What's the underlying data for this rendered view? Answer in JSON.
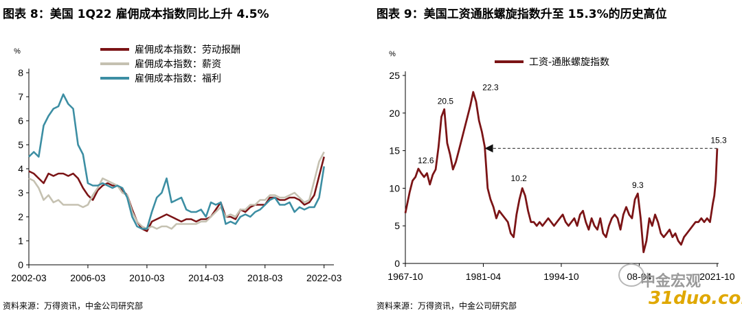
{
  "left": {
    "title": "图表 8：美国 1Q22 雇佣成本指数同比上升 4.5%",
    "source": "资料来源：万得资讯，中金公司研究部"
  },
  "right": {
    "title": "图表 9：美国工资通胀螺旋指数升至 15.3%的历史高位",
    "source": "资料来源：万得资讯，中金公司研究部"
  },
  "watermark": {
    "text1": "中金宏观",
    "text2": "31duo.com"
  },
  "chart_data": [
    {
      "type": "line",
      "unit_label": "%",
      "ylim": [
        0,
        8
      ],
      "yticks": [
        0,
        1,
        2,
        3,
        4,
        5,
        6,
        7,
        8
      ],
      "xlim": [
        2002.167,
        2022.833
      ],
      "xticks": [
        {
          "label": "2002-03",
          "value": 2002.167
        },
        {
          "label": "2006-03",
          "value": 2006.167
        },
        {
          "label": "2010-03",
          "value": 2010.167
        },
        {
          "label": "2014-03",
          "value": 2014.167
        },
        {
          "label": "2018-03",
          "value": 2018.167
        },
        {
          "label": "2022-03",
          "value": 2022.167
        }
      ],
      "legend_position": "top-center",
      "series": [
        {
          "name": "雇佣成本指数：劳动报酬",
          "color": "#7b1416",
          "x": [
            2002.167,
            2002.5,
            2002.833,
            2003.167,
            2003.5,
            2003.833,
            2004.167,
            2004.5,
            2004.833,
            2005.167,
            2005.5,
            2005.833,
            2006.167,
            2006.5,
            2006.833,
            2007.167,
            2007.5,
            2007.833,
            2008.167,
            2008.5,
            2008.833,
            2009.167,
            2009.5,
            2009.833,
            2010.167,
            2010.5,
            2010.833,
            2011.167,
            2011.5,
            2011.833,
            2012.167,
            2012.5,
            2012.833,
            2013.167,
            2013.5,
            2013.833,
            2014.167,
            2014.5,
            2014.833,
            2015.167,
            2015.5,
            2015.833,
            2016.167,
            2016.5,
            2016.833,
            2017.167,
            2017.5,
            2017.833,
            2018.167,
            2018.5,
            2018.833,
            2019.167,
            2019.5,
            2019.833,
            2020.167,
            2020.5,
            2020.833,
            2021.167,
            2021.5,
            2021.833,
            2022.167
          ],
          "values": [
            3.9,
            3.8,
            3.6,
            3.4,
            3.8,
            3.7,
            3.8,
            3.8,
            3.7,
            3.8,
            3.6,
            3.2,
            2.9,
            2.7,
            3.1,
            3.3,
            3.4,
            3.3,
            3.3,
            3.1,
            2.9,
            2.3,
            1.8,
            1.5,
            1.4,
            1.8,
            1.9,
            2.0,
            2.1,
            2.0,
            1.9,
            1.8,
            1.9,
            1.9,
            1.8,
            1.9,
            1.9,
            2.0,
            2.3,
            2.6,
            2.0,
            2.0,
            1.9,
            2.3,
            2.2,
            2.4,
            2.5,
            2.5,
            2.5,
            2.8,
            2.8,
            2.7,
            2.7,
            2.8,
            2.8,
            2.7,
            2.5,
            2.6,
            2.9,
            3.7,
            4.5
          ]
        },
        {
          "name": "雇佣成本指数：薪资",
          "color": "#c5c1b1",
          "x": [
            2002.167,
            2002.5,
            2002.833,
            2003.167,
            2003.5,
            2003.833,
            2004.167,
            2004.5,
            2004.833,
            2005.167,
            2005.5,
            2005.833,
            2006.167,
            2006.5,
            2006.833,
            2007.167,
            2007.5,
            2007.833,
            2008.167,
            2008.5,
            2008.833,
            2009.167,
            2009.5,
            2009.833,
            2010.167,
            2010.5,
            2010.833,
            2011.167,
            2011.5,
            2011.833,
            2012.167,
            2012.5,
            2012.833,
            2013.167,
            2013.5,
            2013.833,
            2014.167,
            2014.5,
            2014.833,
            2015.167,
            2015.5,
            2015.833,
            2016.167,
            2016.5,
            2016.833,
            2017.167,
            2017.5,
            2017.833,
            2018.167,
            2018.5,
            2018.833,
            2019.167,
            2019.5,
            2019.833,
            2020.167,
            2020.5,
            2020.833,
            2021.167,
            2021.5,
            2021.833,
            2022.167
          ],
          "values": [
            3.6,
            3.5,
            3.2,
            2.7,
            2.9,
            2.6,
            2.7,
            2.5,
            2.5,
            2.5,
            2.5,
            2.4,
            2.5,
            2.9,
            3.2,
            3.6,
            3.5,
            3.4,
            3.3,
            3.0,
            2.9,
            2.2,
            1.8,
            1.6,
            1.5,
            1.6,
            1.5,
            1.6,
            1.6,
            1.5,
            1.7,
            1.7,
            1.7,
            1.7,
            1.7,
            1.8,
            1.8,
            2.0,
            2.2,
            2.4,
            2.0,
            2.1,
            2.0,
            2.3,
            2.3,
            2.5,
            2.5,
            2.7,
            2.7,
            2.9,
            2.9,
            2.8,
            2.8,
            2.9,
            3.0,
            2.8,
            2.6,
            2.7,
            3.5,
            4.3,
            4.7
          ]
        },
        {
          "name": "雇佣成本指数：福利",
          "color": "#3c8ea3",
          "x": [
            2002.167,
            2002.5,
            2002.833,
            2003.167,
            2003.5,
            2003.833,
            2004.167,
            2004.5,
            2004.833,
            2005.167,
            2005.5,
            2005.833,
            2006.167,
            2006.5,
            2006.833,
            2007.167,
            2007.5,
            2007.833,
            2008.167,
            2008.5,
            2008.833,
            2009.167,
            2009.5,
            2009.833,
            2010.167,
            2010.5,
            2010.833,
            2011.167,
            2011.5,
            2011.833,
            2012.167,
            2012.5,
            2012.833,
            2013.167,
            2013.5,
            2013.833,
            2014.167,
            2014.5,
            2014.833,
            2015.167,
            2015.5,
            2015.833,
            2016.167,
            2016.5,
            2016.833,
            2017.167,
            2017.5,
            2017.833,
            2018.167,
            2018.5,
            2018.833,
            2019.167,
            2019.5,
            2019.833,
            2020.167,
            2020.5,
            2020.833,
            2021.167,
            2021.5,
            2021.833,
            2022.167
          ],
          "values": [
            4.5,
            4.7,
            4.5,
            5.8,
            6.2,
            6.5,
            6.6,
            7.1,
            6.7,
            6.5,
            5.0,
            4.6,
            3.4,
            3.3,
            3.3,
            3.4,
            3.3,
            3.2,
            3.3,
            3.2,
            2.8,
            2.0,
            1.6,
            1.5,
            1.5,
            2.2,
            2.8,
            3.0,
            3.6,
            2.6,
            2.7,
            2.8,
            2.3,
            2.2,
            2.2,
            2.3,
            2.0,
            2.6,
            2.5,
            2.6,
            1.7,
            1.8,
            1.7,
            2.0,
            2.1,
            2.0,
            2.2,
            2.3,
            2.5,
            2.7,
            2.8,
            2.5,
            2.5,
            2.6,
            2.2,
            2.4,
            2.3,
            2.4,
            2.4,
            2.8,
            4.1
          ]
        }
      ]
    },
    {
      "type": "line",
      "unit_label": "%",
      "ylim": [
        0,
        25
      ],
      "yticks": [
        0,
        5,
        10,
        15,
        20,
        25
      ],
      "xlim": [
        1967.75,
        2022.0
      ],
      "xticks": [
        {
          "label": "1967-10",
          "value": 1967.75
        },
        {
          "label": "1981-04",
          "value": 1981.25
        },
        {
          "label": "1994-10",
          "value": 1994.75
        },
        {
          "label": "08-04",
          "value": 2008.25
        },
        {
          "label": "2021-10",
          "value": 2021.75
        }
      ],
      "legend_position": "top-center",
      "annotations": [
        {
          "label": "12.6",
          "x": 1971.3,
          "y": 12.6
        },
        {
          "label": "20.5",
          "x": 1974.7,
          "y": 20.5
        },
        {
          "label": "22.3",
          "x": 1982.5,
          "y": 22.3
        },
        {
          "label": "10.2",
          "x": 1987.4,
          "y": 10.2
        },
        {
          "label": "9.3",
          "x": 2008.0,
          "y": 9.3
        },
        {
          "label": "15.3",
          "x": 2022.0,
          "y": 15.3
        }
      ],
      "arrow": {
        "from": [
          2021.75,
          15.3
        ],
        "to": [
          1981.5,
          15.3
        ]
      },
      "series": [
        {
          "name": "工资-通胀螺旋指数",
          "color": "#7b1416",
          "x": [
            1967.75,
            1968.5,
            1969.0,
            1969.5,
            1970.0,
            1970.5,
            1971.0,
            1971.5,
            1972.0,
            1972.5,
            1973.0,
            1973.5,
            1974.0,
            1974.5,
            1975.0,
            1975.5,
            1976.0,
            1976.5,
            1977.0,
            1977.5,
            1978.0,
            1978.5,
            1979.0,
            1979.5,
            1980.0,
            1980.5,
            1981.0,
            1981.5,
            1982.0,
            1982.5,
            1983.0,
            1983.5,
            1984.0,
            1984.5,
            1985.0,
            1985.5,
            1986.0,
            1986.5,
            1987.0,
            1987.5,
            1988.0,
            1988.5,
            1989.0,
            1989.5,
            1990.0,
            1990.5,
            1991.0,
            1991.5,
            1992.0,
            1992.5,
            1993.0,
            1993.5,
            1994.0,
            1994.5,
            1995.0,
            1995.5,
            1996.0,
            1996.5,
            1997.0,
            1997.5,
            1998.0,
            1998.5,
            1999.0,
            1999.5,
            2000.0,
            2000.5,
            2001.0,
            2001.5,
            2002.0,
            2002.5,
            2003.0,
            2003.5,
            2004.0,
            2004.5,
            2005.0,
            2005.5,
            2006.0,
            2006.5,
            2007.0,
            2007.5,
            2008.0,
            2008.5,
            2009.0,
            2009.5,
            2010.0,
            2010.5,
            2011.0,
            2011.5,
            2012.0,
            2012.5,
            2013.0,
            2013.5,
            2014.0,
            2014.5,
            2015.0,
            2015.5,
            2016.0,
            2016.5,
            2017.0,
            2017.5,
            2018.0,
            2018.5,
            2019.0,
            2019.5,
            2020.0,
            2020.5,
            2021.0,
            2021.25,
            2021.5,
            2021.75
          ],
          "values": [
            6.7,
            9.5,
            11.0,
            11.5,
            12.6,
            12.0,
            11.5,
            12.0,
            10.5,
            11.8,
            12.5,
            15.5,
            19.5,
            20.5,
            16.0,
            14.5,
            12.5,
            13.5,
            15.0,
            16.5,
            18.0,
            19.5,
            21.0,
            22.8,
            21.5,
            19.0,
            17.5,
            15.5,
            10.0,
            8.5,
            7.5,
            6.0,
            7.0,
            6.5,
            6.0,
            5.5,
            4.0,
            3.5,
            6.5,
            8.5,
            10.0,
            9.0,
            7.0,
            5.5,
            5.5,
            5.0,
            5.5,
            5.0,
            5.5,
            6.0,
            5.5,
            5.0,
            5.5,
            6.0,
            6.5,
            5.5,
            5.0,
            5.5,
            6.0,
            5.0,
            6.5,
            7.0,
            5.5,
            4.5,
            6.0,
            5.0,
            4.5,
            6.0,
            4.0,
            3.5,
            5.0,
            6.0,
            6.5,
            6.0,
            4.5,
            6.5,
            7.5,
            6.5,
            6.0,
            8.5,
            9.3,
            6.0,
            1.5,
            3.0,
            6.0,
            5.0,
            6.5,
            5.5,
            4.0,
            3.5,
            4.0,
            4.5,
            3.5,
            4.0,
            3.0,
            2.5,
            3.5,
            4.0,
            4.5,
            5.0,
            5.5,
            5.5,
            6.0,
            5.5,
            6.0,
            5.5,
            8.0,
            9.0,
            11.0,
            15.3
          ]
        }
      ]
    }
  ]
}
